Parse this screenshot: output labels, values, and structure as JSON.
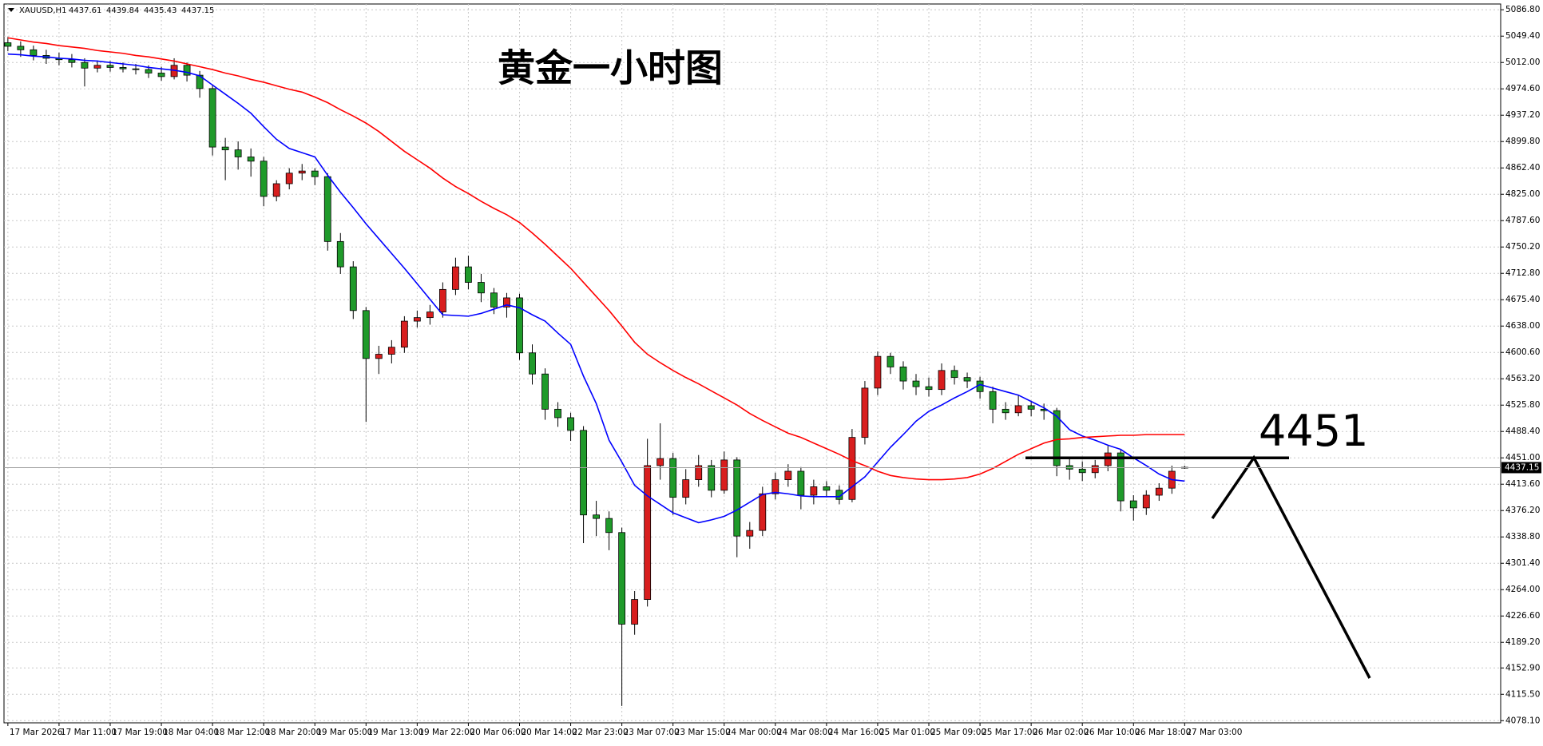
{
  "chart_data": {
    "type": "candlestick",
    "title": "黄金一小时图",
    "symbol": "XAUUSD,H1",
    "categories": [
      "17 Mar 2026",
      null,
      null,
      null,
      "17 Mar 11:00",
      null,
      null,
      null,
      "17 Mar 19:00",
      null,
      null,
      null,
      "18 Mar 04:00",
      null,
      null,
      null,
      "18 Mar 12:00",
      null,
      null,
      null,
      "18 Mar 20:00",
      null,
      null,
      null,
      "19 Mar 05:00",
      null,
      null,
      null,
      "19 Mar 13:00",
      null,
      null,
      null,
      "19 Mar 22:00",
      null,
      null,
      null,
      "20 Mar 06:00",
      null,
      null,
      null,
      "20 Mar 14:00",
      null,
      null,
      null,
      "22 Mar 23:00",
      null,
      null,
      null,
      "23 Mar 07:00",
      null,
      null,
      null,
      "23 Mar 15:00",
      null,
      null,
      null,
      "24 Mar 00:00",
      null,
      null,
      null,
      "24 Mar 08:00",
      null,
      null,
      null,
      "24 Mar 16:00",
      null,
      null,
      null,
      "25 Mar 01:00",
      null,
      null,
      null,
      "25 Mar 09:00",
      null,
      null,
      null,
      "25 Mar 17:00",
      null,
      null,
      null,
      "26 Mar 02:00",
      null,
      null,
      null,
      "26 Mar 10:00",
      null,
      null,
      null,
      "26 Mar 18:00",
      null,
      null,
      null,
      "27 Mar 03:00"
    ],
    "candles": [
      [
        5040,
        5048,
        5028,
        5035
      ],
      [
        5035,
        5042,
        5020,
        5030
      ],
      [
        5030,
        5036,
        5015,
        5022
      ],
      [
        5022,
        5030,
        5010,
        5018
      ],
      [
        5018,
        5026,
        5008,
        5016
      ],
      [
        5016,
        5024,
        5005,
        5012
      ],
      [
        5012,
        5018,
        4978,
        5004
      ],
      [
        5004,
        5015,
        4998,
        5008
      ],
      [
        5008,
        5014,
        4999,
        5005
      ],
      [
        5005,
        5012,
        4998,
        5003
      ],
      [
        5003,
        5010,
        4995,
        5002
      ],
      [
        5002,
        5008,
        4990,
        4997
      ],
      [
        4997,
        5006,
        4986,
        4992
      ],
      [
        4992,
        5018,
        4988,
        5008
      ],
      [
        5008,
        5012,
        4985,
        4994
      ],
      [
        4994,
        5000,
        4962,
        4975
      ],
      [
        4975,
        4980,
        4880,
        4892
      ],
      [
        4892,
        4905,
        4845,
        4888
      ],
      [
        4888,
        4900,
        4860,
        4878
      ],
      [
        4878,
        4890,
        4850,
        4872
      ],
      [
        4872,
        4878,
        4808,
        4822
      ],
      [
        4822,
        4845,
        4815,
        4840
      ],
      [
        4840,
        4862,
        4832,
        4855
      ],
      [
        4855,
        4868,
        4845,
        4858
      ],
      [
        4858,
        4862,
        4838,
        4850
      ],
      [
        4850,
        4855,
        4745,
        4758
      ],
      [
        4758,
        4770,
        4712,
        4722
      ],
      [
        4722,
        4730,
        4648,
        4660
      ],
      [
        4660,
        4665,
        4502,
        4592
      ],
      [
        4592,
        4610,
        4570,
        4598
      ],
      [
        4598,
        4618,
        4585,
        4608
      ],
      [
        4608,
        4652,
        4600,
        4645
      ],
      [
        4645,
        4660,
        4636,
        4650
      ],
      [
        4650,
        4668,
        4640,
        4658
      ],
      [
        4658,
        4700,
        4650,
        4690
      ],
      [
        4690,
        4735,
        4682,
        4722
      ],
      [
        4722,
        4738,
        4690,
        4700
      ],
      [
        4700,
        4712,
        4672,
        4685
      ],
      [
        4685,
        4692,
        4655,
        4665
      ],
      [
        4665,
        4685,
        4650,
        4678
      ],
      [
        4678,
        4684,
        4590,
        4600
      ],
      [
        4600,
        4612,
        4555,
        4570
      ],
      [
        4570,
        4578,
        4505,
        4520
      ],
      [
        4520,
        4530,
        4495,
        4508
      ],
      [
        4508,
        4515,
        4475,
        4490
      ],
      [
        4490,
        4496,
        4330,
        4370
      ],
      [
        4370,
        4390,
        4340,
        4365
      ],
      [
        4365,
        4375,
        4320,
        4345
      ],
      [
        4345,
        4352,
        4099,
        4215
      ],
      [
        4215,
        4262,
        4200,
        4250
      ],
      [
        4250,
        4478,
        4240,
        4440
      ],
      [
        4440,
        4500,
        4420,
        4450
      ],
      [
        4450,
        4458,
        4370,
        4395
      ],
      [
        4395,
        4435,
        4385,
        4420
      ],
      [
        4420,
        4455,
        4410,
        4440
      ],
      [
        4440,
        4448,
        4395,
        4405
      ],
      [
        4405,
        4460,
        4400,
        4448
      ],
      [
        4448,
        4452,
        4310,
        4340
      ],
      [
        4340,
        4360,
        4322,
        4348
      ],
      [
        4348,
        4410,
        4340,
        4400
      ],
      [
        4400,
        4430,
        4392,
        4420
      ],
      [
        4420,
        4442,
        4410,
        4432
      ],
      [
        4432,
        4438,
        4378,
        4398
      ],
      [
        4398,
        4420,
        4385,
        4410
      ],
      [
        4410,
        4418,
        4395,
        4405
      ],
      [
        4405,
        4412,
        4385,
        4392
      ],
      [
        4392,
        4492,
        4388,
        4480
      ],
      [
        4480,
        4560,
        4470,
        4550
      ],
      [
        4550,
        4602,
        4540,
        4595
      ],
      [
        4595,
        4600,
        4570,
        4580
      ],
      [
        4580,
        4588,
        4548,
        4560
      ],
      [
        4560,
        4570,
        4540,
        4552
      ],
      [
        4552,
        4565,
        4538,
        4548
      ],
      [
        4548,
        4585,
        4540,
        4575
      ],
      [
        4575,
        4582,
        4555,
        4565
      ],
      [
        4565,
        4572,
        4550,
        4560
      ],
      [
        4560,
        4566,
        4535,
        4545
      ],
      [
        4545,
        4552,
        4500,
        4520
      ],
      [
        4520,
        4530,
        4505,
        4515
      ],
      [
        4515,
        4540,
        4510,
        4525
      ],
      [
        4525,
        4532,
        4510,
        4520
      ],
      [
        4520,
        4528,
        4505,
        4518
      ],
      [
        4518,
        4522,
        4425,
        4440
      ],
      [
        4440,
        4452,
        4420,
        4435
      ],
      [
        4435,
        4446,
        4418,
        4430
      ],
      [
        4430,
        4448,
        4422,
        4440
      ],
      [
        4440,
        4468,
        4432,
        4458
      ],
      [
        4458,
        4462,
        4375,
        4390
      ],
      [
        4390,
        4398,
        4362,
        4380
      ],
      [
        4380,
        4405,
        4370,
        4398
      ],
      [
        4398,
        4415,
        4390,
        4408
      ],
      [
        4408,
        4440,
        4400,
        4432
      ],
      [
        4437.61,
        4439.84,
        4435.43,
        4437.15
      ]
    ],
    "up_color": "#d81e1e",
    "down_color": "#1f9a2a",
    "series": [
      {
        "color": "#0000ff",
        "values": [
          5024,
          5023,
          5021,
          5020,
          5018,
          5017,
          5015,
          5014,
          5012,
          5010,
          5008,
          5005,
          5003,
          5001,
          4998,
          4993,
          4980,
          4967,
          4954,
          4940,
          4921,
          4903,
          4890,
          4884,
          4878,
          4852,
          4828,
          4806,
          4783,
          4762,
          4741,
          4720,
          4698,
          4676,
          4654,
          4653,
          4652,
          4656,
          4662,
          4668,
          4664,
          4654,
          4645,
          4628,
          4612,
          4567,
          4528,
          4476,
          4445,
          4412,
          4397,
          4385,
          4373,
          4366,
          4359,
          4363,
          4368,
          4377,
          4388,
          4399,
          4402,
          4400,
          4397,
          4396,
          4396,
          4396,
          4410,
          4424,
          4445,
          4466,
          4484,
          4503,
          4517,
          4526,
          4536,
          4545,
          4555,
          4550,
          4545,
          4540,
          4531,
          4522,
          4510,
          4491,
          4482,
          4476,
          4469,
          4463,
          4451,
          4440,
          4428,
          4420,
          4418
        ]
      },
      {
        "color": "#ff0000",
        "values": [
          5047,
          5044,
          5041,
          5039,
          5036,
          5034,
          5032,
          5029,
          5027,
          5025,
          5022,
          5020,
          5017,
          5014,
          5010,
          5006,
          5002,
          4997,
          4993,
          4988,
          4984,
          4979,
          4974,
          4970,
          4963,
          4955,
          4945,
          4936,
          4926,
          4914,
          4900,
          4886,
          4874,
          4862,
          4848,
          4836,
          4826,
          4815,
          4805,
          4796,
          4785,
          4770,
          4754,
          4737,
          4720,
          4700,
          4680,
          4660,
          4638,
          4615,
          4598,
          4586,
          4575,
          4565,
          4556,
          4546,
          4536,
          4526,
          4514,
          4504,
          4495,
          4486,
          4480,
          4472,
          4464,
          4456,
          4447,
          4440,
          4432,
          4426,
          4423,
          4421,
          4420,
          4420,
          4421,
          4423,
          4428,
          4436,
          4446,
          4456,
          4464,
          4472,
          4477,
          4478,
          4480,
          4481,
          4482,
          4483,
          4483,
          4484,
          4484,
          4484,
          4484
        ]
      }
    ],
    "ylim": [
      4075,
      5095
    ],
    "yticks": [
      {
        "value": 5086.8,
        "label": "5086.80"
      },
      {
        "value": 5049.4,
        "label": "5049.40"
      },
      {
        "value": 5012,
        "label": "5012.00"
      },
      {
        "value": 4974.6,
        "label": "4974.60"
      },
      {
        "value": 4937.2,
        "label": "4937.20"
      },
      {
        "value": 4899.8,
        "label": "4899.80"
      },
      {
        "value": 4862.4,
        "label": "4862.40"
      },
      {
        "value": 4825,
        "label": "4825.00"
      },
      {
        "value": 4787.6,
        "label": "4787.60"
      },
      {
        "value": 4750.2,
        "label": "4750.20"
      },
      {
        "value": 4712.8,
        "label": "4712.80"
      },
      {
        "value": 4675.4,
        "label": "4675.40"
      },
      {
        "value": 4638,
        "label": "4638.00"
      },
      {
        "value": 4600.6,
        "label": "4600.60"
      },
      {
        "value": 4563.2,
        "label": "4563.20"
      },
      {
        "value": 4525.8,
        "label": "4525.80"
      },
      {
        "value": 4488.4,
        "label": "4488.40"
      },
      {
        "value": 4451,
        "label": "4451.00"
      },
      {
        "value": 4413.6,
        "label": "4413.60"
      },
      {
        "value": 4376.2,
        "label": "4376.20"
      },
      {
        "value": 4338.8,
        "label": "4338.80"
      },
      {
        "value": 4301.4,
        "label": "4301.40"
      },
      {
        "value": 4264,
        "label": "4264.00"
      },
      {
        "value": 4226.6,
        "label": "4226.60"
      },
      {
        "value": 4189.2,
        "label": "4189.20"
      },
      {
        "value": 4152.9,
        "label": "4152.90"
      },
      {
        "value": 4115.5,
        "label": "4115.50"
      },
      {
        "value": 4078.1,
        "label": "4078.10"
      }
    ],
    "grid": true,
    "annotation_level": 4451
  }
}
